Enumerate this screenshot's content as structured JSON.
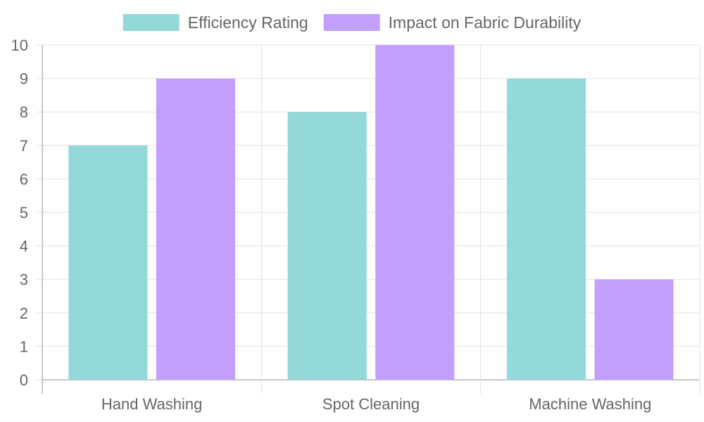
{
  "chart_data": {
    "type": "bar",
    "title": "",
    "xlabel": "",
    "ylabel": "",
    "categories": [
      "Hand Washing",
      "Spot Cleaning",
      "Machine Washing"
    ],
    "series": [
      {
        "name": "Efficiency Rating",
        "values": [
          7,
          8,
          9
        ],
        "color": "#94d9d9"
      },
      {
        "name": "Impact on Fabric Durability",
        "values": [
          9,
          10,
          3
        ],
        "color": "#c29ffb"
      }
    ],
    "ylim": [
      0,
      10
    ],
    "yticks": [
      0,
      1,
      2,
      3,
      4,
      5,
      6,
      7,
      8,
      9,
      10
    ],
    "grid": true,
    "legend": "top-center"
  }
}
